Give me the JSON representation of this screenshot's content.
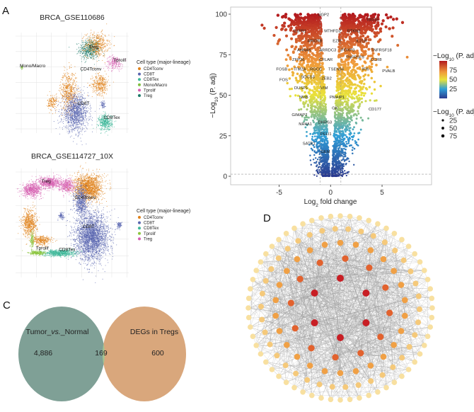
{
  "panels": {
    "a": "A",
    "b": "B",
    "c": "C",
    "d": "D"
  },
  "chart_data": [
    {
      "type": "scatter",
      "panel": "A",
      "title": "BRCA_GSE110686",
      "legend_title": "Cell type (major-lineage)",
      "legend_placement": "right",
      "xlim": [
        -10,
        10
      ],
      "ylim": [
        -10,
        10
      ],
      "grid": true,
      "legend": [
        {
          "name": "CD4Tconv",
          "color": "#e0821c"
        },
        {
          "name": "CD8T",
          "color": "#5a66b0"
        },
        {
          "name": "CD8Tex",
          "color": "#3fb89a"
        },
        {
          "name": "Mono/Macro",
          "color": "#7fbf3f"
        },
        {
          "name": "Tprolif",
          "color": "#d65fb0"
        },
        {
          "name": "Treg",
          "color": "#1e7a6a"
        }
      ],
      "clusters": [
        {
          "type": "Treg",
          "center": [
            3.1,
            6.6
          ],
          "spread": [
            1.5,
            1.7
          ],
          "n": 500
        },
        {
          "type": "CD4Tconv",
          "center": [
            4.4,
            7.6
          ],
          "spread": [
            1.7,
            2.0
          ],
          "n": 450
        },
        {
          "type": "CD4Tconv",
          "center": [
            5.0,
            -0.3
          ],
          "spread": [
            1.2,
            1.7
          ],
          "n": 350
        },
        {
          "type": "CD4Tconv",
          "center": [
            -0.6,
            -1.7
          ],
          "spread": [
            1.2,
            3.3
          ],
          "n": 550
        },
        {
          "type": "CD4Tconv",
          "center": [
            -3.5,
            -3.9
          ],
          "spread": [
            0.7,
            1.3
          ],
          "n": 150
        },
        {
          "type": "Tprolif",
          "center": [
            7.5,
            4.0
          ],
          "spread": [
            1.2,
            1.1
          ],
          "n": 200
        },
        {
          "type": "CD8T",
          "center": [
            0.6,
            -6.0
          ],
          "spread": [
            1.9,
            3.0
          ],
          "n": 1200
        },
        {
          "type": "CD8T",
          "center": [
            5.4,
            -4.3
          ],
          "spread": [
            0.4,
            0.6
          ],
          "n": 60
        },
        {
          "type": "CD8Tex",
          "center": [
            5.9,
            -7.9
          ],
          "spread": [
            1.0,
            1.3
          ],
          "n": 400
        },
        {
          "type": "Mono/Macro",
          "center": [
            -8.9,
            3.0
          ],
          "spread": [
            0.15,
            0.3
          ],
          "n": 20
        }
      ],
      "labels": [
        {
          "text": "Treg",
          "pos": [
            3.8,
            6.8
          ]
        },
        {
          "text": "Tprolif",
          "pos": [
            8.4,
            4.2
          ]
        },
        {
          "text": "Mono/Macro",
          "pos": [
            -7.0,
            3.1
          ]
        },
        {
          "text": "CD4Tconv",
          "pos": [
            3.3,
            2.5
          ]
        },
        {
          "text": "CD8T",
          "pos": [
            2.0,
            -4.4
          ]
        },
        {
          "text": "CD8Tex",
          "pos": [
            7.0,
            -7.2
          ]
        }
      ]
    },
    {
      "type": "scatter",
      "panel": "A",
      "title": "BRCA_GSE114727_10X",
      "legend_title": "Cell type (major-lineage)",
      "legend_placement": "right",
      "xlim": [
        -10,
        10
      ],
      "ylim": [
        -10,
        10
      ],
      "grid": true,
      "legend": [
        {
          "name": "CD4Tconv",
          "color": "#e0821c"
        },
        {
          "name": "CD8T",
          "color": "#5a66b0"
        },
        {
          "name": "CD8Tex",
          "color": "#3fb89a"
        },
        {
          "name": "Tprolif",
          "color": "#8cc63f"
        },
        {
          "name": "Treg",
          "color": "#d65fb0"
        }
      ],
      "clusters": [
        {
          "type": "Treg",
          "center": [
            -7.1,
            6.1
          ],
          "spread": [
            1.4,
            1.0
          ],
          "n": 600
        },
        {
          "type": "Treg",
          "center": [
            -4.0,
            7.4
          ],
          "spread": [
            1.6,
            0.9
          ],
          "n": 600
        },
        {
          "type": "Treg",
          "center": [
            -1.0,
            6.9
          ],
          "spread": [
            1.2,
            1.0
          ],
          "n": 400
        },
        {
          "type": "CD4Tconv",
          "center": [
            2.9,
            6.5
          ],
          "spread": [
            2.0,
            2.0
          ],
          "n": 1500
        },
        {
          "type": "CD4Tconv",
          "center": [
            -7.5,
            0.0
          ],
          "spread": [
            1.1,
            2.0
          ],
          "n": 600
        },
        {
          "type": "CD4Tconv",
          "center": [
            -5.3,
            -3.2
          ],
          "spread": [
            1.4,
            0.7
          ],
          "n": 300
        },
        {
          "type": "CD8T",
          "center": [
            3.5,
            -2.6
          ],
          "spread": [
            2.4,
            3.5
          ],
          "n": 2600
        },
        {
          "type": "CD8T",
          "center": [
            1.6,
            3.9
          ],
          "spread": [
            1.0,
            2.3
          ],
          "n": 600
        },
        {
          "type": "CD8T",
          "center": [
            -1.9,
            1.3
          ],
          "spread": [
            0.4,
            0.5
          ],
          "n": 80
        },
        {
          "type": "CD8T",
          "center": [
            8.3,
            -0.4
          ],
          "spread": [
            0.4,
            0.5
          ],
          "n": 80
        },
        {
          "type": "CD8Tex",
          "center": [
            -2.1,
            -5.5
          ],
          "spread": [
            2.3,
            0.5
          ],
          "n": 700
        },
        {
          "type": "Tprolif",
          "center": [
            -6.3,
            -5.5
          ],
          "spread": [
            1.2,
            0.35
          ],
          "n": 250
        },
        {
          "type": "Tprolif",
          "center": [
            -7.1,
            -3.2
          ],
          "spread": [
            0.3,
            1.3
          ],
          "n": 120
        }
      ],
      "labels": [
        {
          "text": "Treg",
          "pos": [
            -4.6,
            7.4
          ]
        },
        {
          "text": "CD4Tconv",
          "pos": [
            2.3,
            4.4
          ]
        },
        {
          "text": "CD8T",
          "pos": [
            2.9,
            -0.9
          ]
        },
        {
          "text": "Tprolif",
          "pos": [
            -5.3,
            -4.9
          ]
        },
        {
          "text": "CD8Tex",
          "pos": [
            -0.9,
            -5.1
          ]
        }
      ]
    },
    {
      "type": "scatter",
      "panel": "B",
      "title": "",
      "xlabel": "Log2 fold change",
      "xlabel_main": "Log",
      "xlabel_sub": "2",
      "xlabel_rest": " fold change",
      "ylabel_main": "−Log",
      "ylabel_sub": "10",
      "ylabel_rest": " (P. adj)",
      "xlim": [
        -9.7,
        9.8
      ],
      "ylim": [
        -5,
        104
      ],
      "xticks": [
        -5,
        0,
        5
      ],
      "yticks": [
        0,
        25,
        50,
        75,
        100
      ],
      "thresholds": {
        "logfc": [
          -1,
          1
        ],
        "padj_line": 1.3
      },
      "colorbar": {
        "title_main": "−Log",
        "title_sub": "10",
        "title_rest": " (P. adj)",
        "ticks": [
          75,
          50,
          25
        ],
        "range": [
          0,
          100
        ],
        "colors": [
          "#2b3a8f",
          "#2f9fd8",
          "#e9e23a",
          "#f09a3a",
          "#b3191e"
        ]
      },
      "size_legend": {
        "title_main": "−Log",
        "title_sub": "10",
        "title_rest": " (P. adj)",
        "values": [
          25,
          50,
          75
        ]
      },
      "gene_labels": [
        {
          "gene": "UGP2",
          "x": -0.69,
          "y": 99.7
        },
        {
          "gene": "ISG15",
          "x": 4.1,
          "y": 96.8
        },
        {
          "gene": "S1PR1",
          "x": -2.98,
          "y": 89.8
        },
        {
          "gene": "MTHFD2",
          "x": 0.19,
          "y": 89.8
        },
        {
          "gene": "RTKN2",
          "x": 2.25,
          "y": 89.8
        },
        {
          "gene": "ARID5B",
          "x": -1.53,
          "y": 83.7
        },
        {
          "gene": "EZR",
          "x": 0.6,
          "y": 83.7
        },
        {
          "gene": "IL21R",
          "x": 3.0,
          "y": 83.7
        },
        {
          "gene": "AHNAK",
          "x": -2.56,
          "y": 77.9
        },
        {
          "gene": "ARRDC3",
          "x": -0.27,
          "y": 77.9
        },
        {
          "gene": "FOXP3",
          "x": 1.68,
          "y": 77.9
        },
        {
          "gene": "TNFRSF18",
          "x": 4.93,
          "y": 77.9
        },
        {
          "gene": "ZFP36",
          "x": -3.13,
          "y": 72.1
        },
        {
          "gene": "CFLAR",
          "x": -0.45,
          "y": 72.1
        },
        {
          "gene": "TNFRSF9",
          "x": 2.36,
          "y": 73.5
        },
        {
          "gene": "CCR8",
          "x": 4.42,
          "y": 72.1
        },
        {
          "gene": "FOSB",
          "x": -4.74,
          "y": 66.2
        },
        {
          "gene": "ITM2A",
          "x": -2.98,
          "y": 66.2
        },
        {
          "gene": "RGCC",
          "x": -1.42,
          "y": 66.2
        },
        {
          "gene": "TSEN54",
          "x": 0.53,
          "y": 66.2
        },
        {
          "gene": "IFI6",
          "x": 3.39,
          "y": 66.2
        },
        {
          "gene": "PVALB",
          "x": 5.64,
          "y": 65.1
        },
        {
          "gene": "FOS",
          "x": -4.56,
          "y": 59.7
        },
        {
          "gene": "SOCS3",
          "x": -2.22,
          "y": 61.4
        },
        {
          "gene": "ZEB2",
          "x": -0.39,
          "y": 60.4
        },
        {
          "gene": "DUSP1",
          "x": -2.86,
          "y": 54.6
        },
        {
          "gene": "VIM",
          "x": -0.62,
          "y": 54.6
        },
        {
          "gene": "NMB",
          "x": -2.61,
          "y": 48.8
        },
        {
          "gene": "PMAIP1",
          "x": 0.64,
          "y": 48.8
        },
        {
          "gene": "GK",
          "x": 0.41,
          "y": 42.2
        },
        {
          "gene": "CD177",
          "x": 4.31,
          "y": 41.5
        },
        {
          "gene": "GIMAP7",
          "x": -3.02,
          "y": 38.1
        },
        {
          "gene": "DHRS3",
          "x": -0.55,
          "y": 33.5
        },
        {
          "gene": "NR4A1",
          "x": -2.45,
          "y": 32.3
        },
        {
          "gene": "PELI1",
          "x": -0.45,
          "y": 26.2
        },
        {
          "gene": "SATB1",
          "x": -2.1,
          "y": 20.4
        },
        {
          "gene": "GEM",
          "x": -0.5,
          "y": 15.3
        }
      ]
    },
    {
      "type": "venn",
      "panel": "C",
      "sets": [
        {
          "name": "Tumor_vs._Normal",
          "name_a": "Tumor_",
          "name_b": "vs.",
          "name_c": "_Normal",
          "only": "4,886",
          "color": "#7fa096"
        },
        {
          "name": "DEGs in Tregs",
          "only": "600",
          "color": "#d9a77c"
        }
      ],
      "intersection": "169",
      "intersection_color": "#a3c492"
    },
    {
      "type": "network",
      "panel": "D",
      "layout": "concentric",
      "rings": [
        {
          "nodes": 6,
          "color": "#c81e24"
        },
        {
          "nodes": 12,
          "color": "#e2622e"
        },
        {
          "nodes": 26,
          "color": "#f0a045"
        },
        {
          "nodes": 38,
          "color": "#f5c97a"
        },
        {
          "nodes": 60,
          "color": "#f8e0a0"
        }
      ],
      "edge_color": "#9a9a9a"
    }
  ]
}
